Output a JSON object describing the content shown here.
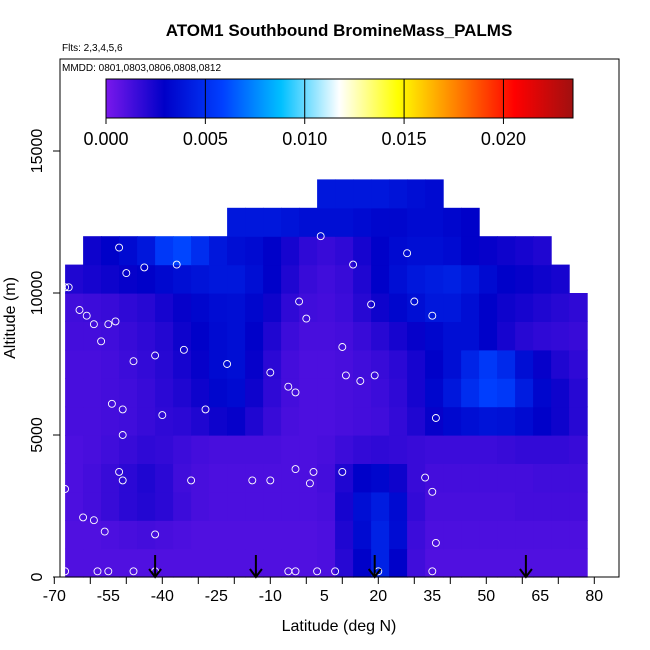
{
  "chart_data": {
    "type": "heatmap",
    "title": "ATOM1 Southbound BromineMass_PALMS",
    "subtitle_lines": [
      "Flts: 2,3,4,5,6",
      "MMDD: 0801,0803,0806,0808,0812"
    ],
    "xlabel": "Latitude (deg N)",
    "ylabel": "Altitude (m)",
    "xlim": [
      -70,
      85
    ],
    "ylim": [
      0,
      17500
    ],
    "x_tick_labels": [
      "-70",
      "-55",
      "-40",
      "-25",
      "-10",
      "5",
      "20",
      "35",
      "50",
      "65",
      "80"
    ],
    "x_tick_values": [
      -70,
      -60,
      -50,
      -40,
      -30,
      -20,
      -10,
      0,
      10,
      20,
      30,
      40,
      50,
      60,
      70,
      80
    ],
    "x_tick_label_values": [
      -70,
      -55,
      -40,
      -25,
      -10,
      5,
      20,
      35,
      50,
      65,
      80
    ],
    "y_ticks": [
      0,
      5000,
      10000,
      15000
    ],
    "y_tick_labels": [
      "0",
      "5000",
      "10000",
      "15000"
    ],
    "colorbar": {
      "min": 0.0,
      "max": 0.0235,
      "tick_values": [
        0.0,
        0.005,
        0.01,
        0.015,
        0.02
      ],
      "tick_labels": [
        "0.000",
        "0.005",
        "0.010",
        "0.015",
        "0.020"
      ],
      "colors": [
        "#7a18ec",
        "#0000c8",
        "#0040ff",
        "#00c0ff",
        "#ffffff",
        "#ffff00",
        "#ff8000",
        "#ff0000",
        "#a01010"
      ]
    },
    "grid": {
      "x_edges": [
        -67,
        -62,
        -57,
        -52,
        -47,
        -42,
        -37,
        -32,
        -27,
        -22,
        -17,
        -12,
        -7,
        -2,
        3,
        8,
        13,
        18,
        23,
        28,
        33,
        38,
        43,
        48,
        53,
        58,
        63,
        68,
        73,
        78
      ],
      "row_height": 1000,
      "rows": [
        {
          "y": 0,
          "x_range": [
            -67,
            77
          ],
          "values": [
            0.001,
            0.001,
            0.001,
            0.001,
            0.001,
            0.001,
            0.001,
            0.001,
            0.001,
            0.001,
            0.001,
            0.001,
            0.001,
            0.001,
            0.0011,
            0.002,
            0.003,
            0.0045,
            0.003,
            0.0014,
            0.001,
            0.001,
            0.001,
            0.001,
            0.001,
            0.001,
            0.001,
            0.001,
            0.001
          ]
        },
        {
          "y": 1000,
          "x_range": [
            -67,
            79
          ],
          "values": [
            0.001,
            0.001,
            0.0011,
            0.0012,
            0.0013,
            0.0012,
            0.0011,
            0.001,
            0.001,
            0.001,
            0.001,
            0.001,
            0.001,
            0.001,
            0.0011,
            0.0022,
            0.0034,
            0.0045,
            0.0035,
            0.0015,
            0.0011,
            0.0011,
            0.0011,
            0.0011,
            0.0011,
            0.0011,
            0.0011,
            0.0011,
            0.0011
          ]
        },
        {
          "y": 2000,
          "x_range": [
            -67,
            79
          ],
          "values": [
            0.0011,
            0.0013,
            0.0016,
            0.0019,
            0.0021,
            0.0019,
            0.0015,
            0.0012,
            0.0011,
            0.0011,
            0.0011,
            0.0011,
            0.0011,
            0.0011,
            0.0012,
            0.0024,
            0.0036,
            0.0042,
            0.0034,
            0.0017,
            0.0012,
            0.0012,
            0.0012,
            0.0012,
            0.0012,
            0.0013,
            0.0013,
            0.0013,
            0.0013
          ]
        },
        {
          "y": 3000,
          "x_range": [
            -67,
            79
          ],
          "values": [
            0.0011,
            0.0013,
            0.0016,
            0.0019,
            0.0022,
            0.0019,
            0.0014,
            0.0012,
            0.0011,
            0.0011,
            0.0011,
            0.0011,
            0.0011,
            0.0011,
            0.0013,
            0.0022,
            0.003,
            0.0032,
            0.0026,
            0.0016,
            0.0013,
            0.0013,
            0.0013,
            0.0013,
            0.0013,
            0.0013,
            0.0014,
            0.0014,
            0.0014
          ]
        },
        {
          "y": 4000,
          "x_range": [
            -67,
            79
          ],
          "values": [
            0.0011,
            0.0012,
            0.0014,
            0.0016,
            0.0018,
            0.0017,
            0.0015,
            0.0013,
            0.0012,
            0.0012,
            0.0012,
            0.0012,
            0.0011,
            0.0011,
            0.0012,
            0.0015,
            0.0017,
            0.0018,
            0.0017,
            0.0016,
            0.0015,
            0.0015,
            0.0015,
            0.0015,
            0.0016,
            0.0017,
            0.0017,
            0.0017,
            0.0016
          ]
        },
        {
          "y": 5000,
          "x_range": [
            -67,
            79
          ],
          "values": [
            0.0012,
            0.0012,
            0.0013,
            0.0014,
            0.0016,
            0.0018,
            0.0019,
            0.0022,
            0.0026,
            0.0028,
            0.0022,
            0.0016,
            0.0012,
            0.0011,
            0.0011,
            0.0012,
            0.0013,
            0.0014,
            0.0017,
            0.0022,
            0.0028,
            0.0033,
            0.0036,
            0.0038,
            0.0037,
            0.0034,
            0.003,
            0.0026,
            0.002
          ]
        },
        {
          "y": 6000,
          "x_range": [
            -67,
            79
          ],
          "values": [
            0.0012,
            0.0012,
            0.0013,
            0.0014,
            0.0016,
            0.0019,
            0.0022,
            0.0026,
            0.0032,
            0.0034,
            0.0026,
            0.0018,
            0.0013,
            0.0011,
            0.0011,
            0.0012,
            0.0013,
            0.0015,
            0.0018,
            0.0024,
            0.0032,
            0.004,
            0.005,
            0.0058,
            0.0055,
            0.0042,
            0.0032,
            0.0026,
            0.002
          ]
        },
        {
          "y": 7000,
          "x_range": [
            -67,
            79
          ],
          "values": [
            0.0012,
            0.0012,
            0.0013,
            0.0015,
            0.0017,
            0.002,
            0.0024,
            0.0028,
            0.0034,
            0.0036,
            0.0028,
            0.0019,
            0.0013,
            0.0011,
            0.0011,
            0.0012,
            0.0014,
            0.0016,
            0.0019,
            0.0024,
            0.003,
            0.0036,
            0.0046,
            0.0055,
            0.0048,
            0.0036,
            0.0028,
            0.0022,
            0.0018
          ]
        },
        {
          "y": 8000,
          "x_range": [
            -67,
            79
          ],
          "values": [
            0.0013,
            0.0013,
            0.0014,
            0.0016,
            0.0018,
            0.0021,
            0.0026,
            0.003,
            0.0034,
            0.0036,
            0.003,
            0.0022,
            0.0015,
            0.0012,
            0.0012,
            0.0013,
            0.0016,
            0.002,
            0.0024,
            0.0028,
            0.0032,
            0.0036,
            0.0036,
            0.003,
            0.0024,
            0.002,
            0.0018,
            0.0017,
            0.0016
          ]
        },
        {
          "y": 9000,
          "x_range": [
            -67,
            79
          ],
          "values": [
            0.0014,
            0.0015,
            0.0016,
            0.0018,
            0.002,
            0.0024,
            0.0028,
            0.0032,
            0.0035,
            0.0036,
            0.0032,
            0.0026,
            0.0018,
            0.0014,
            0.0013,
            0.0015,
            0.002,
            0.0026,
            0.0032,
            0.0036,
            0.004,
            0.004,
            0.0036,
            0.003,
            0.0026,
            0.0024,
            0.0022,
            0.002,
            0.0018
          ]
        },
        {
          "y": 10000,
          "x_range": [
            -67,
            75
          ],
          "values": [
            0.0022,
            0.0024,
            0.0026,
            0.0028,
            0.003,
            0.0033,
            0.0036,
            0.0038,
            0.004,
            0.004,
            0.0036,
            0.003,
            0.0022,
            0.0016,
            0.0014,
            0.0016,
            0.0022,
            0.003,
            0.0036,
            0.004,
            0.0042,
            0.0044,
            0.004,
            0.0034,
            0.003,
            0.0028,
            0.0026,
            0.0024
          ]
        },
        {
          "y": 11000,
          "x_range": [
            -62,
            68
          ],
          "values": [
            0.0026,
            0.003,
            0.0034,
            0.004,
            0.0055,
            0.006,
            0.005,
            0.004,
            0.0036,
            0.0034,
            0.003,
            0.0024,
            0.0018,
            0.0016,
            0.0018,
            0.0024,
            0.003,
            0.0034,
            0.0036,
            0.0036,
            0.0034,
            0.003,
            0.0028,
            0.0026,
            0.0024,
            0.0022
          ]
        },
        {
          "y": 12000,
          "x_range": [
            -22,
            48
          ],
          "values": [
            0.004,
            0.004,
            0.004,
            0.0038,
            0.0036,
            0.0036,
            0.0036,
            0.0034,
            0.0032,
            0.0032,
            0.0034,
            0.0034,
            0.0032,
            0.003
          ]
        },
        {
          "y": 13000,
          "x_range": [
            3,
            38
          ],
          "values": [
            0.004,
            0.004,
            0.004,
            0.004,
            0.0038,
            0.0036,
            0.0034
          ]
        }
      ]
    },
    "observations": [
      {
        "x": -67,
        "y": 10200
      },
      {
        "x": -66,
        "y": 10200
      },
      {
        "x": -63,
        "y": 9400
      },
      {
        "x": -61,
        "y": 9200
      },
      {
        "x": -59,
        "y": 8900
      },
      {
        "x": -57,
        "y": 8300
      },
      {
        "x": -55,
        "y": 8900
      },
      {
        "x": -53,
        "y": 9000
      },
      {
        "x": -52,
        "y": 11600
      },
      {
        "x": -50,
        "y": 10700
      },
      {
        "x": -48,
        "y": 7600
      },
      {
        "x": -45,
        "y": 10900
      },
      {
        "x": -42,
        "y": 7800
      },
      {
        "x": -40,
        "y": 5700
      },
      {
        "x": -36,
        "y": 11000
      },
      {
        "x": -34,
        "y": 8000
      },
      {
        "x": -28,
        "y": 5900
      },
      {
        "x": -22,
        "y": 7500
      },
      {
        "x": -54,
        "y": 6100
      },
      {
        "x": -51,
        "y": 5900
      },
      {
        "x": -51,
        "y": 5000
      },
      {
        "x": -52,
        "y": 3700
      },
      {
        "x": -51,
        "y": 3400
      },
      {
        "x": -67,
        "y": 3100
      },
      {
        "x": -62,
        "y": 2100
      },
      {
        "x": -59,
        "y": 2000
      },
      {
        "x": -56,
        "y": 1600
      },
      {
        "x": -42,
        "y": 1500
      },
      {
        "x": -32,
        "y": 3400
      },
      {
        "x": -15,
        "y": 3400
      },
      {
        "x": -10,
        "y": 7200
      },
      {
        "x": -5,
        "y": 6700
      },
      {
        "x": -3,
        "y": 6500
      },
      {
        "x": -2,
        "y": 9700
      },
      {
        "x": 0,
        "y": 9100
      },
      {
        "x": 4,
        "y": 12000
      },
      {
        "x": 13,
        "y": 11000
      },
      {
        "x": 18,
        "y": 9600
      },
      {
        "x": 10,
        "y": 8100
      },
      {
        "x": 11,
        "y": 7100
      },
      {
        "x": 15,
        "y": 6900
      },
      {
        "x": 19,
        "y": 7100
      },
      {
        "x": 28,
        "y": 11400
      },
      {
        "x": 30,
        "y": 9700
      },
      {
        "x": 35,
        "y": 9200
      },
      {
        "x": 36,
        "y": 5600
      },
      {
        "x": 1,
        "y": 3300
      },
      {
        "x": 2,
        "y": 3700
      },
      {
        "x": -3,
        "y": 3800
      },
      {
        "x": -10,
        "y": 3400
      },
      {
        "x": 10,
        "y": 3700
      },
      {
        "x": 33,
        "y": 3500
      },
      {
        "x": 35,
        "y": 3000
      },
      {
        "x": 36,
        "y": 1200
      },
      {
        "x": -67,
        "y": 200
      },
      {
        "x": -58,
        "y": 200
      },
      {
        "x": -55,
        "y": 200
      },
      {
        "x": -48,
        "y": 200
      },
      {
        "x": -42,
        "y": 200
      },
      {
        "x": -5,
        "y": 200
      },
      {
        "x": -3,
        "y": 200
      },
      {
        "x": 3,
        "y": 200
      },
      {
        "x": 8,
        "y": 200
      },
      {
        "x": 20,
        "y": 200
      },
      {
        "x": 35,
        "y": 200
      }
    ],
    "arrows_x": [
      -42,
      -14,
      19,
      61
    ]
  }
}
